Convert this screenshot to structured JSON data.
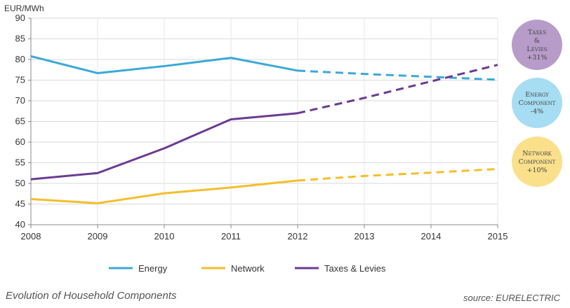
{
  "chart_data": {
    "type": "line",
    "unit_label": "EUR/MWh",
    "x": [
      2008,
      2009,
      2010,
      2011,
      2012,
      2013,
      2014,
      2015
    ],
    "ylim": [
      40,
      90
    ],
    "yticks": [
      40,
      45,
      50,
      55,
      60,
      65,
      70,
      75,
      80,
      85,
      90
    ],
    "grid": "horizontal",
    "projection_from": 2012,
    "series": [
      {
        "name": "Energy",
        "color": "#3aa9d8",
        "values": [
          80.8,
          76.7,
          78.4,
          80.4,
          77.3,
          76.5,
          75.8,
          75.1
        ]
      },
      {
        "name": "Network",
        "color": "#f5be2a",
        "values": [
          46.2,
          45.2,
          47.6,
          49.0,
          50.7,
          51.8,
          52.6,
          53.5
        ]
      },
      {
        "name": "Taxes & Levies",
        "color": "#6b3a93",
        "values": [
          51.0,
          52.5,
          58.5,
          65.5,
          67.0,
          70.7,
          74.7,
          78.7
        ]
      }
    ],
    "annotations": [
      {
        "lines": [
          "Taxes",
          "&",
          "Levies",
          "+31%"
        ],
        "color": "#b79cc9"
      },
      {
        "lines": [
          "Energy",
          "Component",
          "-4%"
        ],
        "color": "#a6ddf2"
      },
      {
        "lines": [
          "Network",
          "Component",
          "+10%"
        ],
        "color": "#fbe08c"
      }
    ],
    "legend": "bottom"
  },
  "caption": "Evolution of Household Components",
  "source": "source: EURELECTRIC"
}
